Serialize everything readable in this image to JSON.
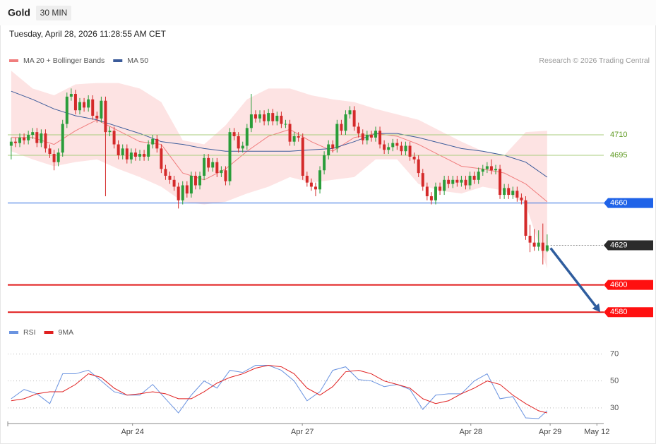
{
  "header": {
    "title": "Gold",
    "interval": "30 MIN",
    "timestamp": "Tuesday, April 28, 2026 11:28:55 AM CET",
    "credit": "Research © 2026 Trading Central"
  },
  "chart_data": [
    {
      "type": "candlestick",
      "xlim": [
        -0.8,
        138.2
      ],
      "ylim": [
        4573.4,
        4757.1
      ],
      "up_color": "#2a9d3a",
      "down_color": "#d42a2a",
      "open": [
        4702,
        4705,
        4704,
        4708,
        4706,
        4710,
        4712,
        4704,
        4711,
        4700,
        4696,
        4690,
        4697,
        4718,
        4738,
        4740,
        4728,
        4734,
        4730,
        4736,
        4724,
        4722,
        4735,
        4712,
        4713,
        4703,
        4695,
        4700,
        4692,
        4697,
        4694,
        4696,
        4694,
        4703,
        4707,
        4700,
        4685,
        4680,
        4677,
        4672,
        4662,
        4673,
        4667,
        4680,
        4673,
        4680,
        4693,
        4686,
        4690,
        4682,
        4684,
        4676,
        4712,
        4709,
        4700,
        4702,
        4715,
        4725,
        4722,
        4725,
        4720,
        4726,
        4720,
        4724,
        4718,
        4718,
        4705,
        4709,
        4708,
        4680,
        4675,
        4672,
        4670,
        4684,
        4695,
        4703,
        4700,
        4718,
        4713,
        4725,
        4728,
        4716,
        4711,
        4706,
        4710,
        4708,
        4713,
        4703,
        4699,
        4701,
        4704,
        4702,
        4698,
        4702,
        4694,
        4692,
        4682,
        4672,
        4665,
        4662,
        4672,
        4669,
        4677,
        4674,
        4677,
        4675,
        4677,
        4673,
        4680,
        4677,
        4683,
        4685,
        4687,
        4684,
        4685,
        4666,
        4671,
        4666,
        4669,
        4664,
        4662,
        4636,
        4631,
        4628,
        4631,
        4625
      ],
      "high": [
        4708,
        4708,
        4711,
        4711,
        4713,
        4715,
        4715,
        4714,
        4714,
        4703,
        4699,
        4700,
        4721,
        4741,
        4744,
        4743,
        4737,
        4737,
        4739,
        4739,
        4727,
        4738,
        4738,
        4716,
        4716,
        4706,
        4703,
        4703,
        4700,
        4700,
        4699,
        4699,
        4706,
        4710,
        4710,
        4703,
        4688,
        4683,
        4680,
        4675,
        4676,
        4676,
        4683,
        4683,
        4683,
        4696,
        4696,
        4693,
        4693,
        4687,
        4687,
        4715,
        4715,
        4712,
        4705,
        4718,
        4740,
        4728,
        4728,
        4728,
        4729,
        4729,
        4727,
        4727,
        4721,
        4721,
        4712,
        4712,
        4711,
        4683,
        4678,
        4675,
        4687,
        4698,
        4706,
        4706,
        4721,
        4721,
        4728,
        4731,
        4731,
        4719,
        4714,
        4713,
        4713,
        4716,
        4716,
        4706,
        4704,
        4707,
        4707,
        4705,
        4705,
        4705,
        4697,
        4695,
        4685,
        4675,
        4668,
        4675,
        4675,
        4680,
        4680,
        4680,
        4680,
        4680,
        4680,
        4683,
        4683,
        4686,
        4688,
        4690,
        4692,
        4688,
        4688,
        4674,
        4674,
        4672,
        4672,
        4667,
        4665,
        4644,
        4641,
        4640,
        4645,
        4637
      ],
      "low": [
        4692,
        4701,
        4701,
        4703,
        4703,
        4707,
        4701,
        4701,
        4697,
        4693,
        4684,
        4687,
        4694,
        4715,
        4735,
        4725,
        4725,
        4727,
        4727,
        4721,
        4719,
        4719,
        4665,
        4709,
        4700,
        4692,
        4692,
        4689,
        4689,
        4691,
        4691,
        4691,
        4691,
        4700,
        4697,
        4682,
        4677,
        4674,
        4669,
        4656,
        4659,
        4664,
        4664,
        4670,
        4670,
        4677,
        4683,
        4683,
        4679,
        4679,
        4673,
        4673,
        4706,
        4697,
        4697,
        4699,
        4712,
        4719,
        4719,
        4717,
        4717,
        4717,
        4717,
        4715,
        4715,
        4702,
        4702,
        4705,
        4677,
        4672,
        4669,
        4665,
        4667,
        4681,
        4692,
        4697,
        4697,
        4710,
        4710,
        4722,
        4713,
        4708,
        4703,
        4703,
        4705,
        4705,
        4700,
        4696,
        4696,
        4698,
        4699,
        4695,
        4695,
        4691,
        4689,
        4679,
        4669,
        4662,
        4659,
        4659,
        4666,
        4666,
        4671,
        4671,
        4672,
        4672,
        4670,
        4670,
        4674,
        4674,
        4680,
        4682,
        4681,
        4681,
        4663,
        4663,
        4663,
        4663,
        4661,
        4659,
        4633,
        4624,
        4625,
        4625,
        4615,
        4624
      ],
      "close": [
        4705,
        4704,
        4708,
        4706,
        4710,
        4712,
        4704,
        4711,
        4700,
        4696,
        4690,
        4697,
        4718,
        4738,
        4740,
        4728,
        4734,
        4730,
        4736,
        4724,
        4722,
        4735,
        4712,
        4713,
        4703,
        4695,
        4700,
        4692,
        4697,
        4694,
        4696,
        4694,
        4703,
        4707,
        4700,
        4685,
        4680,
        4677,
        4672,
        4662,
        4673,
        4667,
        4680,
        4673,
        4680,
        4693,
        4686,
        4690,
        4682,
        4684,
        4676,
        4712,
        4709,
        4700,
        4702,
        4715,
        4725,
        4722,
        4725,
        4720,
        4726,
        4720,
        4724,
        4718,
        4718,
        4705,
        4709,
        4708,
        4680,
        4675,
        4672,
        4670,
        4684,
        4695,
        4703,
        4700,
        4718,
        4713,
        4725,
        4728,
        4716,
        4711,
        4706,
        4710,
        4708,
        4713,
        4703,
        4699,
        4701,
        4704,
        4702,
        4698,
        4702,
        4694,
        4692,
        4682,
        4672,
        4665,
        4662,
        4672,
        4669,
        4677,
        4674,
        4677,
        4675,
        4677,
        4673,
        4680,
        4677,
        4683,
        4685,
        4687,
        4684,
        4685,
        4666,
        4671,
        4666,
        4669,
        4664,
        4662,
        4636,
        4631,
        4628,
        4631,
        4625,
        4629
      ],
      "overlays": [
        {
          "name": "MA 20 + Bollinger Bands",
          "color": "#f07d7d",
          "band_color": "#fde3e3",
          "x": [
            0,
            5,
            10,
            15,
            20,
            25,
            30,
            35,
            40,
            45,
            50,
            55,
            60,
            65,
            70,
            75,
            80,
            85,
            90,
            95,
            100,
            105,
            110,
            115,
            120,
            125
          ],
          "values": [
            4708,
            4708,
            4703,
            4713,
            4721,
            4713,
            4705,
            4703,
            4682,
            4677,
            4685,
            4698,
            4709,
            4714,
            4705,
            4698,
            4708,
            4711,
            4709,
            4703,
            4695,
            4687,
            4685,
            4682,
            4674,
            4661
          ],
          "upper": [
            4757,
            4744,
            4739,
            4747,
            4748,
            4748,
            4744,
            4734,
            4706,
            4703,
            4717,
            4736,
            4744,
            4744,
            4739,
            4736,
            4734,
            4729,
            4725,
            4721,
            4713,
            4705,
            4698,
            4695,
            4712,
            4713
          ],
          "lower": [
            4698,
            4692,
            4687,
            4690,
            4692,
            4685,
            4679,
            4672,
            4661,
            4659,
            4661,
            4667,
            4672,
            4679,
            4675,
            4677,
            4679,
            4692,
            4692,
            4674,
            4669,
            4667,
            4672,
            4669,
            4659,
            4612
          ]
        },
        {
          "name": "MA 50",
          "color": "#3b5b9a",
          "x": [
            0,
            5,
            10,
            15,
            20,
            25,
            30,
            35,
            40,
            45,
            50,
            55,
            60,
            65,
            70,
            75,
            80,
            85,
            90,
            95,
            100,
            105,
            110,
            115,
            120,
            125
          ],
          "values": [
            4742,
            4736,
            4729,
            4724,
            4721,
            4716,
            4711,
            4705,
            4703,
            4700,
            4698,
            4698,
            4698,
            4698,
            4699,
            4700,
            4705,
            4711,
            4711,
            4708,
            4704,
            4700,
            4698,
            4695,
            4690,
            4679
          ]
        }
      ],
      "levels": [
        {
          "value": 4710,
          "color": "#a9cc7e",
          "label_color": "#5f9a22",
          "style": "thin"
        },
        {
          "value": 4695,
          "color": "#a9cc7e",
          "label_color": "#5f9a22",
          "style": "thin"
        },
        {
          "value": 4660,
          "color": "#2b6be0",
          "label_color": "#1f63e8",
          "style": "solid"
        },
        {
          "value": 4629,
          "color": "#888888",
          "label_color": "#2b2b2b",
          "style": "dotted"
        },
        {
          "value": 4600,
          "color": "#e01818",
          "label_color": "#ff1010",
          "style": "thick"
        },
        {
          "value": 4580,
          "color": "#e01818",
          "label_color": "#ff1010",
          "style": "thick"
        }
      ],
      "arrow": {
        "x": [
          125.8,
          137.4
        ],
        "y": [
          4627,
          4580
        ],
        "color": "#2f5d9e"
      }
    },
    {
      "type": "line",
      "xlim": [
        -0.8,
        138.2
      ],
      "ylim": [
        20,
        76
      ],
      "yticks": [
        30,
        50,
        70
      ],
      "grid": true,
      "xticks": [
        {
          "value": 28.3,
          "label": "Apr 24"
        },
        {
          "value": 67.9,
          "label": "Apr 27"
        },
        {
          "value": 107.2,
          "label": "Apr 28"
        },
        {
          "value": 125.7,
          "label": "Apr 29"
        },
        {
          "value": 136.6,
          "label": "May 12"
        }
      ],
      "series": [
        {
          "name": "RSI",
          "color": "#6a93e0",
          "x": [
            0,
            3,
            6,
            9,
            12,
            15,
            18,
            21,
            24,
            27,
            30,
            33,
            36,
            39,
            42,
            45,
            48,
            51,
            54,
            57,
            60,
            63,
            66,
            69,
            72,
            75,
            78,
            81,
            84,
            87,
            90,
            93,
            96,
            99,
            102,
            105,
            108,
            111,
            114,
            117,
            120,
            123,
            125
          ],
          "values": [
            36.8,
            43.7,
            40.5,
            33.2,
            55.3,
            55.3,
            58,
            50,
            42,
            39.5,
            39.5,
            47.4,
            36.8,
            26.3,
            39.5,
            50,
            44.7,
            57.9,
            56.3,
            61.6,
            61.6,
            57.9,
            50,
            35.3,
            42,
            57.9,
            60.5,
            51,
            50,
            45.8,
            47.4,
            43.7,
            28.9,
            39.5,
            40.5,
            40.5,
            50,
            55.3,
            36.8,
            38.4,
            22.6,
            22.1,
            27.9
          ]
        },
        {
          "name": "9MA",
          "color": "#e02020",
          "x": [
            0,
            3,
            6,
            9,
            12,
            15,
            18,
            21,
            24,
            27,
            30,
            33,
            36,
            39,
            42,
            45,
            48,
            51,
            54,
            57,
            60,
            63,
            66,
            69,
            72,
            75,
            78,
            81,
            84,
            87,
            90,
            93,
            96,
            99,
            102,
            105,
            108,
            111,
            114,
            117,
            120,
            123,
            125
          ],
          "values": [
            35.3,
            36.8,
            40.5,
            42,
            42,
            47.4,
            55.3,
            52.6,
            44.7,
            39.5,
            40.5,
            42,
            40.5,
            36.8,
            36.8,
            42,
            48.4,
            52.6,
            55.3,
            59.5,
            61.6,
            60.5,
            55.3,
            44.7,
            39.5,
            45.8,
            56.8,
            57.9,
            55.3,
            50,
            47.4,
            44.7,
            36.8,
            33.2,
            35.3,
            40.5,
            44.7,
            50,
            47.4,
            39.5,
            33.2,
            27.9,
            26.3
          ]
        }
      ]
    }
  ]
}
